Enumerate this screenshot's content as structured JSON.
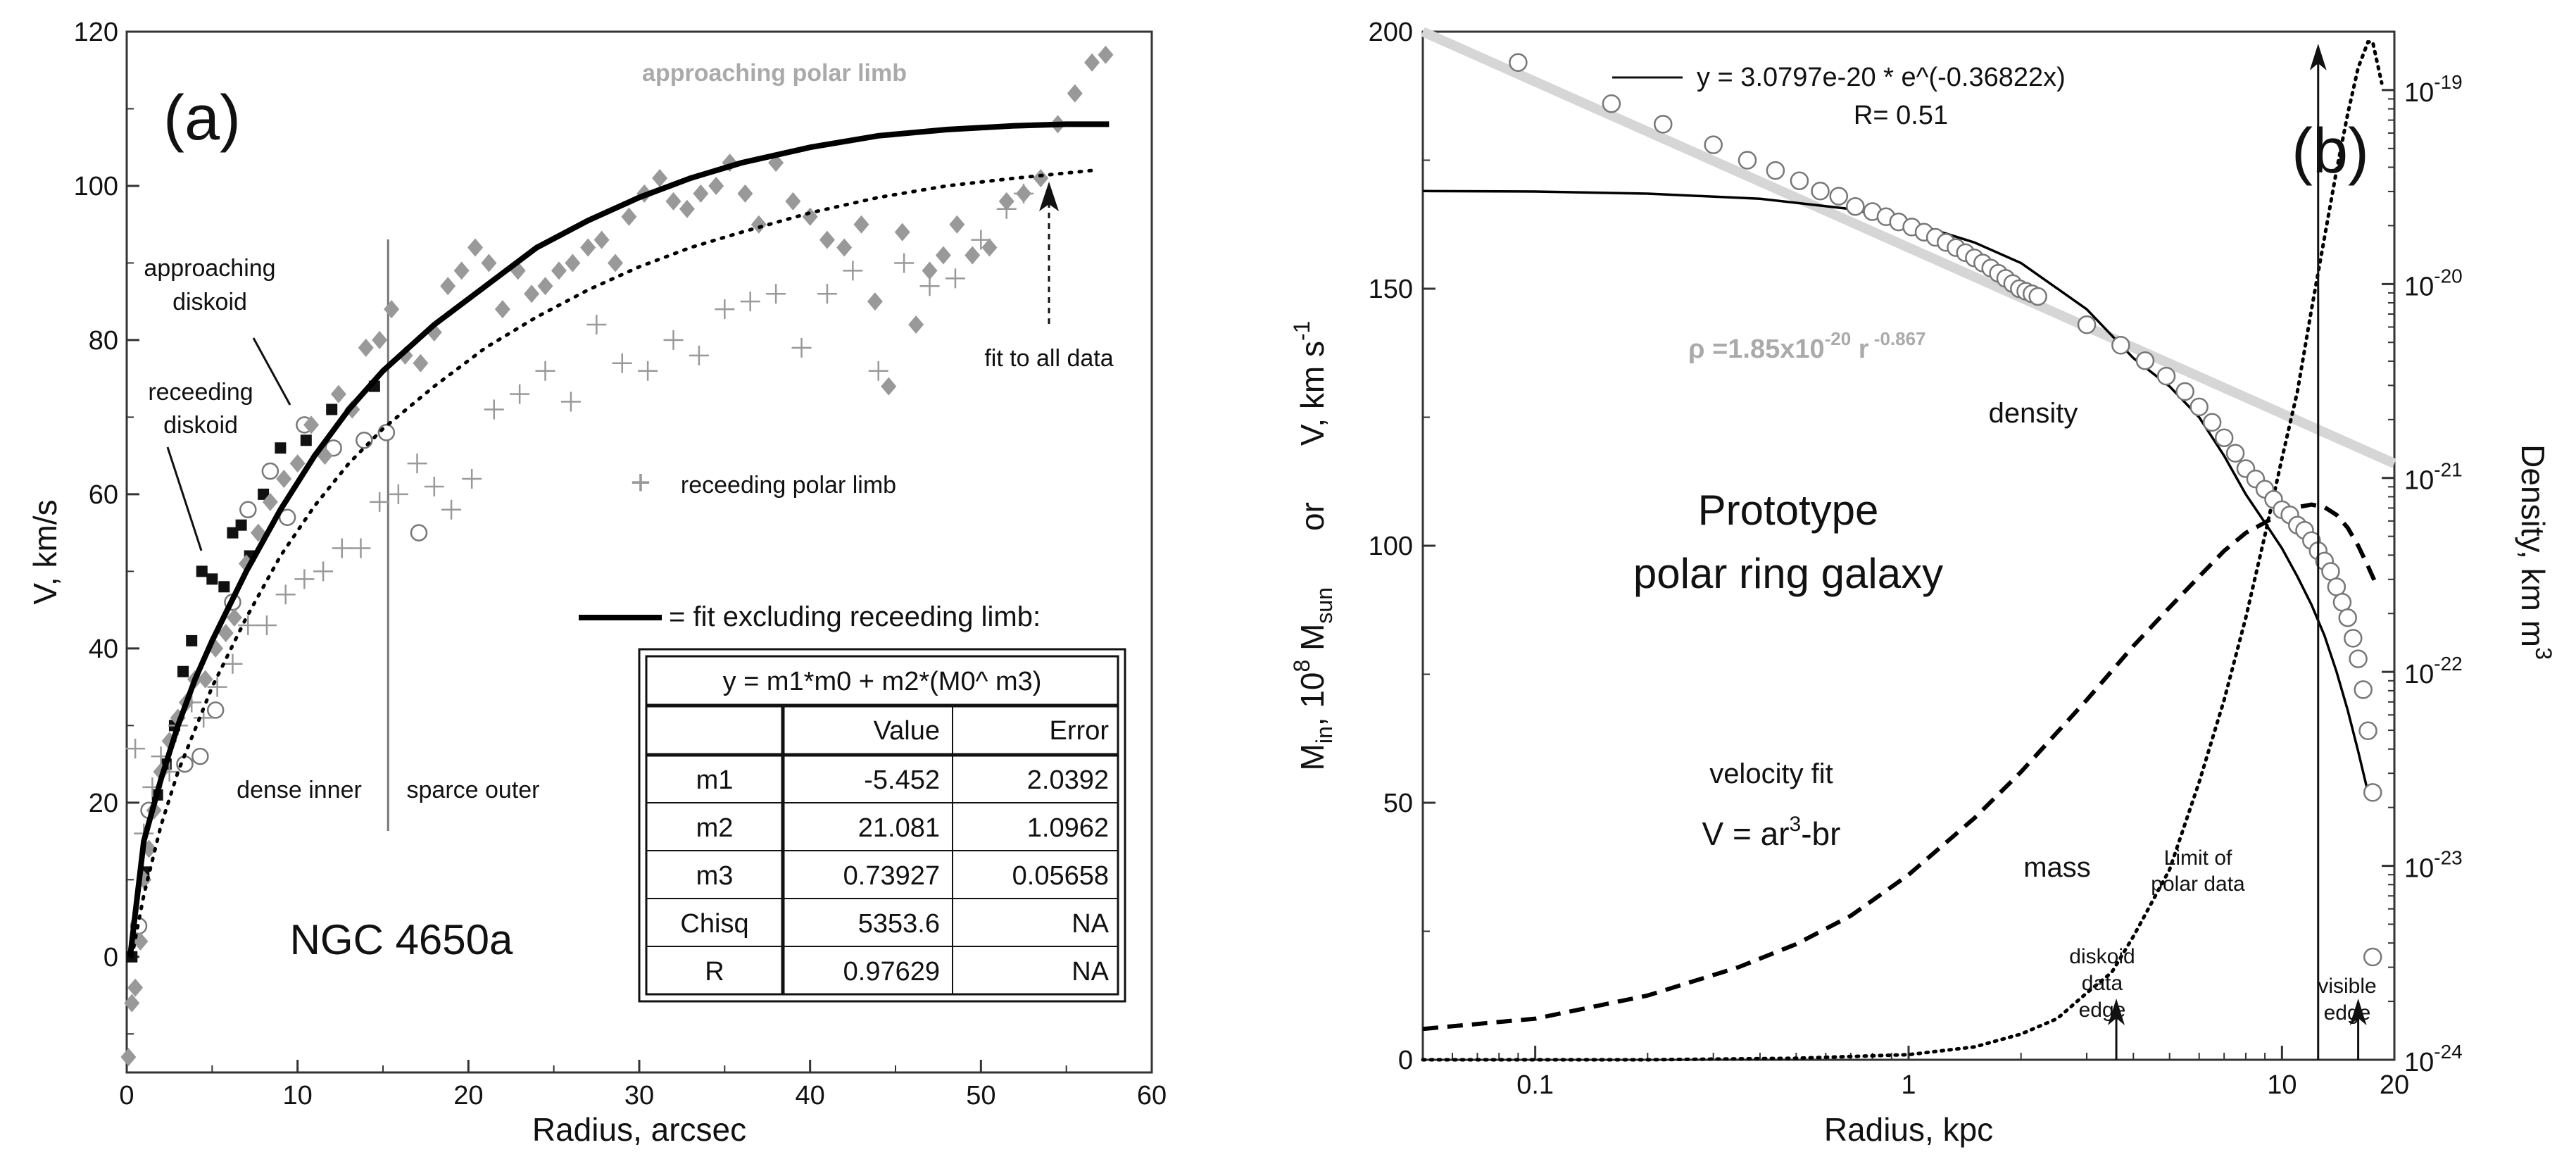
{
  "chart_data": [
    {
      "panel": "(a)",
      "type": "scatter",
      "title": "NGC 4650a",
      "xlabel": "Radius, arcsec",
      "ylabel": "V, km/s",
      "xlim": [
        0,
        60
      ],
      "ylim": [
        -15,
        120
      ],
      "xticks": [
        "0",
        "10",
        "20",
        "30",
        "40",
        "50",
        "60"
      ],
      "yticks": [
        "0",
        "20",
        "40",
        "60",
        "80",
        "100",
        "120"
      ],
      "annotations": {
        "approaching_polar_limb": "approaching polar limb",
        "approaching_diskoid_1": "approaching",
        "approaching_diskoid_2": "diskoid",
        "receeding_diskoid_1": "receeding",
        "receeding_diskoid_2": "diskoid",
        "fit_to_all_data": "fit to all data",
        "receeding_polar_limb": "receeding polar limb",
        "dense_inner": "dense inner",
        "sparce_outer": "sparce outer",
        "fit_legend": "= fit excluding receeding limb:"
      },
      "divider_radius": 15.3,
      "fit_table": {
        "equation": "y = m1*m0 + m2*(M0^ m3)",
        "headers": [
          "",
          "Value",
          "Error"
        ],
        "rows": [
          [
            "m1",
            "-5.452",
            "2.0392"
          ],
          [
            "m2",
            "21.081",
            "1.0962"
          ],
          [
            "m3",
            "0.73927",
            "0.05658"
          ],
          [
            "Chisq",
            "5353.6",
            "NA"
          ],
          [
            "R",
            "0.97629",
            "NA"
          ]
        ]
      },
      "series": [
        {
          "name": "fit excluding receeding limb",
          "style": "solid-thick",
          "x": [
            0.2,
            1,
            2,
            3,
            4,
            5,
            7,
            9,
            11,
            13,
            15,
            18,
            21,
            24,
            27,
            30,
            33,
            36,
            40,
            44,
            48,
            52,
            55,
            57.5
          ],
          "y": [
            0,
            15,
            23,
            30,
            36,
            41,
            50,
            58,
            65,
            71,
            76,
            82,
            87,
            92,
            95.5,
            98.5,
            101,
            103,
            105,
            106.5,
            107.3,
            107.8,
            108,
            108
          ]
        },
        {
          "name": "fit to all data",
          "style": "dotted",
          "x": [
            0.3,
            1,
            2,
            3,
            5,
            7,
            9,
            11,
            13,
            15,
            18,
            21,
            24,
            27,
            30,
            33,
            36,
            40,
            44,
            48,
            52,
            56.5
          ],
          "y": [
            0,
            8,
            17,
            24,
            35,
            44,
            52,
            58.5,
            64,
            68.5,
            74,
            79,
            83,
            86.5,
            89.5,
            92,
            94,
            96.5,
            98.5,
            100,
            101,
            102
          ]
        },
        {
          "name": "approaching diskoid",
          "marker": "square",
          "x": [
            0.3,
            0.6,
            1,
            1.4,
            1.8,
            2.3,
            2.8,
            3.3,
            3.8,
            4.4,
            5,
            5.7,
            6.2,
            6.7,
            7.2,
            8,
            9,
            10.5,
            12,
            14.5
          ],
          "y": [
            0,
            4,
            11,
            19,
            21,
            25,
            30,
            37,
            41,
            50,
            49,
            48,
            55,
            56,
            52,
            60,
            66,
            67,
            71,
            74
          ]
        },
        {
          "name": "receeding diskoid",
          "marker": "circle",
          "x": [
            0.7,
            1.3,
            3.4,
            4.3,
            5.2,
            6.2,
            7.1,
            8.4,
            9.4,
            10.4,
            12.1,
            13.9,
            15.2,
            17.1
          ],
          "y": [
            4,
            19,
            25,
            26,
            32,
            46,
            58,
            63,
            57,
            69,
            66,
            67,
            68,
            55
          ]
        },
        {
          "name": "approaching polar limb",
          "marker": "diamond",
          "x": [
            0.1,
            0.3,
            0.5,
            0.8,
            1,
            1.3,
            1.6,
            2,
            2.5,
            3,
            3.5,
            4,
            4.6,
            5.2,
            5.8,
            6.3,
            7,
            7.7,
            8.4,
            9.2,
            10,
            10.8,
            11.6,
            12.4,
            13.2,
            14,
            14.8,
            15.5,
            16.3,
            17.2,
            18,
            18.8,
            19.6,
            20.4,
            21.2,
            22,
            22.9,
            23.7,
            24.5,
            25.3,
            26.1,
            27,
            27.8,
            28.6,
            29.4,
            30.3,
            31.2,
            32,
            32.8,
            33.6,
            34.5,
            35.3,
            36.2,
            37,
            38,
            39,
            40,
            41,
            42,
            43,
            43.8,
            44.6,
            45.4,
            46.2,
            47,
            47.8,
            48.6,
            49.5,
            50.5,
            51.5,
            52.5,
            53.5,
            54.5,
            55.5,
            56.5,
            57.3
          ],
          "y": [
            -13,
            -6,
            -4,
            2,
            10,
            14,
            19,
            24,
            28,
            31,
            33,
            36,
            36,
            40,
            42,
            44,
            51,
            55,
            59,
            62,
            64,
            69,
            65,
            73,
            71,
            79,
            80,
            84,
            78,
            77,
            81,
            87,
            89,
            92,
            90,
            84,
            89,
            86,
            87,
            89,
            90,
            92,
            93,
            90,
            96,
            99,
            101,
            98,
            97,
            99,
            100,
            103,
            99,
            95,
            103,
            98,
            96,
            93,
            92,
            95,
            85,
            74,
            94,
            82,
            89,
            91,
            95,
            91,
            92,
            98,
            99,
            101,
            108,
            112,
            116,
            117
          ]
        },
        {
          "name": "receeding polar limb",
          "marker": "plus",
          "x": [
            0.5,
            1,
            1.5,
            2,
            2.5,
            3,
            3.8,
            4.5,
            5.3,
            6.2,
            7.1,
            8.2,
            9.3,
            10.4,
            11.5,
            12.6,
            13.7,
            14.8,
            15.9,
            17,
            18,
            19,
            20.2,
            21.5,
            23,
            24.5,
            26,
            27.5,
            29,
            30.5,
            32,
            33.5,
            35,
            36.5,
            38,
            39.5,
            41,
            42.5,
            44,
            45.5,
            47,
            48.5,
            50,
            51.5,
            52.5
          ],
          "y": [
            27,
            16,
            22,
            26,
            24,
            30,
            33,
            31,
            35,
            38,
            43,
            43,
            47,
            49,
            50,
            53,
            53,
            59,
            60,
            64,
            61,
            58,
            62,
            71,
            73,
            76,
            72,
            82,
            77,
            76,
            80,
            78,
            84,
            85,
            86,
            79,
            86,
            89,
            76,
            90,
            87,
            88,
            93,
            97,
            99
          ]
        }
      ]
    },
    {
      "panel": "(b)",
      "type": "line",
      "title": "Prototype polar ring galaxy",
      "title_lines": [
        "Prototype",
        "polar ring galaxy"
      ],
      "xlabel": "Radius, kpc",
      "xscale": "log",
      "xlim": [
        0.05,
        20
      ],
      "xticks": [
        "0.1",
        "1",
        "10",
        "20"
      ],
      "ylim": [
        0,
        200
      ],
      "yticks": [
        "0",
        "50",
        "100",
        "150",
        "200"
      ],
      "ylabel_left": {
        "m": "M",
        "in": "in",
        "mid": ", 10",
        "exp": "8",
        "msun": " M",
        "sun": "sun",
        "or": "or",
        "v": "V, km s",
        "vexp": "-1"
      },
      "ylabel_right": {
        "text": "Density, km m",
        "exp": "3"
      },
      "y2scale": "log",
      "y2lim": [
        1e-24,
        2e-19
      ],
      "y2ticks": [
        {
          "base": "10",
          "exp": "-19"
        },
        {
          "base": "10",
          "exp": "-20"
        },
        {
          "base": "10",
          "exp": "-21"
        },
        {
          "base": "10",
          "exp": "-22"
        },
        {
          "base": "10",
          "exp": "-23"
        },
        {
          "base": "10",
          "exp": "-24"
        }
      ],
      "legend": {
        "equation": "y = 3.0797e-20 * e^(-0.36822x)",
        "r": "R= 0.51"
      },
      "powerlaw_label": {
        "rho": "ρ =1.85x10",
        "exp1": "-20",
        "r": " r",
        "exp2": " -0.867"
      },
      "labels": {
        "density": "density",
        "velocity_fit": "velocity fit",
        "formula_v": "V = ar",
        "formula_exp": "3",
        "formula_tail": "-br",
        "mass": "mass",
        "limit_1": "Limit of",
        "limit_2": "polar data",
        "diskoid_1": "diskoid",
        "diskoid_2": "data",
        "diskoid_3": "edge",
        "visible_1": "visible",
        "visible_2": "edge"
      },
      "markers": {
        "limit_of_polar_data_kpc": 12.5,
        "diskoid_data_edge_kpc": 3.6,
        "visible_edge_kpc": 16
      },
      "density_points": {
        "r": [
          0.09,
          0.16,
          0.22,
          0.3,
          0.37,
          0.44,
          0.51,
          0.58,
          0.65,
          0.72,
          0.8,
          0.87,
          0.94,
          1.02,
          1.1,
          1.18,
          1.26,
          1.34,
          1.42,
          1.5,
          1.58,
          1.66,
          1.74,
          1.82,
          1.9,
          1.98,
          2.06,
          2.14,
          2.22,
          3.0,
          3.7,
          4.3,
          4.9,
          5.5,
          6.0,
          6.5,
          7.0,
          7.5,
          8.0,
          8.5,
          9.0,
          9.5,
          10.0,
          10.5,
          11.0,
          11.5,
          12.0,
          12.5,
          13.0,
          13.5,
          14.0,
          14.5,
          15.0,
          15.5,
          16.0,
          16.5,
          17.0,
          17.5
        ],
        "v": [
          194,
          186,
          182,
          178,
          175,
          173,
          171,
          169,
          168,
          166,
          165,
          164,
          163,
          162,
          161,
          160,
          159,
          158,
          157,
          156,
          155,
          154,
          153,
          152,
          151,
          150,
          149.5,
          149,
          148.5,
          143,
          139,
          136,
          133,
          130,
          127,
          124,
          121,
          118,
          115,
          113,
          111,
          109,
          107,
          106,
          104,
          103,
          101,
          99,
          97,
          95,
          92,
          89,
          86,
          82,
          78,
          72,
          64,
          52
        ]
      },
      "lone_point": {
        "r": 17.5,
        "v": 20
      },
      "series": [
        {
          "name": "exponential density fit",
          "style": "thin-solid",
          "r": [
            0.05,
            0.1,
            0.2,
            0.4,
            0.7,
            1,
            1.5,
            2,
            3,
            4,
            5,
            6,
            7,
            8,
            9,
            10,
            11,
            12,
            13,
            14,
            15,
            16,
            17
          ],
          "v": [
            169,
            168.9,
            168.5,
            167.5,
            165.5,
            163,
            159,
            155,
            146,
            136.5,
            131,
            125,
            117.5,
            110,
            104.5,
            99.5,
            94,
            88.5,
            82.5,
            75.5,
            68,
            60,
            52
          ]
        },
        {
          "name": "power-law fit",
          "style": "thick-gray",
          "r": [
            0.05,
            20
          ],
          "v": [
            200,
            116
          ]
        },
        {
          "name": "velocity fit V = ar^3-br",
          "style": "dashed",
          "r": [
            0.05,
            0.1,
            0.2,
            0.35,
            0.5,
            0.7,
            1,
            1.5,
            2,
            3,
            4,
            5,
            6,
            7,
            8,
            9,
            10,
            11,
            12,
            13,
            14,
            15,
            16,
            17,
            18
          ],
          "v": [
            6,
            8,
            12.5,
            18,
            22.5,
            28,
            36,
            47,
            56,
            70,
            80.5,
            88,
            94,
            99,
            102.5,
            104.5,
            106.5,
            107.5,
            108,
            107.5,
            106,
            103.5,
            100,
            96,
            92
          ]
        },
        {
          "name": "mass",
          "style": "dotted",
          "r": [
            0.05,
            0.2,
            0.5,
            1,
            1.5,
            2,
            2.5,
            3,
            3.5,
            4,
            5,
            6,
            7,
            8,
            9,
            10,
            11,
            12,
            13,
            14,
            15,
            16,
            17,
            17.5,
            18.5
          ],
          "v": [
            0,
            0,
            0.3,
            1,
            2.5,
            5,
            8,
            13,
            17,
            24,
            37,
            54,
            70,
            86,
            102,
            117,
            130,
            146,
            160,
            173,
            184,
            193,
            198,
            198,
            190
          ]
        }
      ]
    }
  ]
}
